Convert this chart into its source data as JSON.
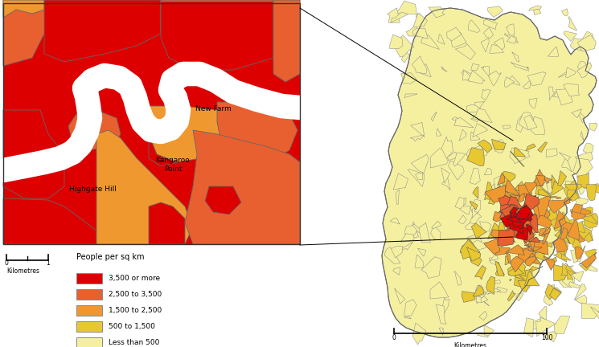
{
  "background_color": "#ffffff",
  "legend": {
    "title": "People per sq km",
    "entries": [
      {
        "label": "3,500 or more",
        "color": "#dd0000"
      },
      {
        "label": "2,500 to 3,500",
        "color": "#e86030"
      },
      {
        "label": "1,500 to 2,500",
        "color": "#f09830"
      },
      {
        "label": "500 to 1,500",
        "color": "#e8c830"
      },
      {
        "label": "Less than 500",
        "color": "#f5f0a0"
      }
    ]
  },
  "colors": {
    "red": "#dd0000",
    "dark_orange": "#e86030",
    "orange": "#f09830",
    "gold": "#e8c830",
    "light_yellow": "#f5f0a0",
    "white": "#ffffff",
    "border": "#666666"
  }
}
